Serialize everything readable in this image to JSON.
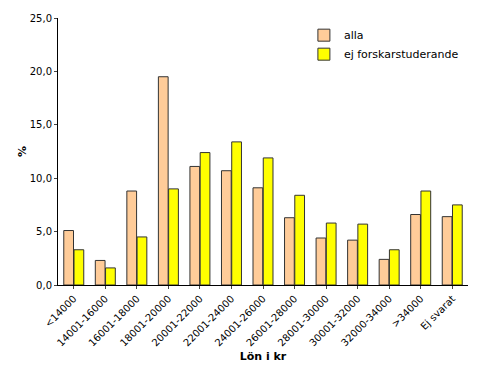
{
  "chart_data": {
    "type": "bar",
    "x_label": "Lön i kr",
    "y_label": "%",
    "categories": [
      "<14000",
      "14001-16000",
      "16001-18000",
      "18001-20000",
      "20001-22000",
      "22001-24000",
      "24001-26000",
      "26001-28000",
      "28001-30000",
      "30001-32000",
      "32000-34000",
      ">34000",
      "Ej svarat"
    ],
    "series": [
      {
        "name": "alla",
        "color": "#ffcc99",
        "values": [
          5.1,
          2.3,
          8.8,
          19.5,
          11.1,
          10.7,
          9.1,
          6.3,
          4.4,
          4.2,
          2.4,
          6.6,
          6.4
        ]
      },
      {
        "name": "ej forskarstuderande",
        "color": "#ffff00",
        "values": [
          3.3,
          1.6,
          4.5,
          9.0,
          12.4,
          13.4,
          11.9,
          8.4,
          5.8,
          5.7,
          3.3,
          8.8,
          7.5
        ]
      }
    ],
    "ylim": [
      0,
      25
    ],
    "yticks": [
      {
        "value": 0,
        "label": "0,0"
      },
      {
        "value": 5,
        "label": "5,0"
      },
      {
        "value": 10,
        "label": "10,0"
      },
      {
        "value": 15,
        "label": "15,0"
      },
      {
        "value": 20,
        "label": "20,0"
      },
      {
        "value": 25,
        "label": "25,0"
      }
    ],
    "grid": false,
    "legend": "top-right"
  }
}
